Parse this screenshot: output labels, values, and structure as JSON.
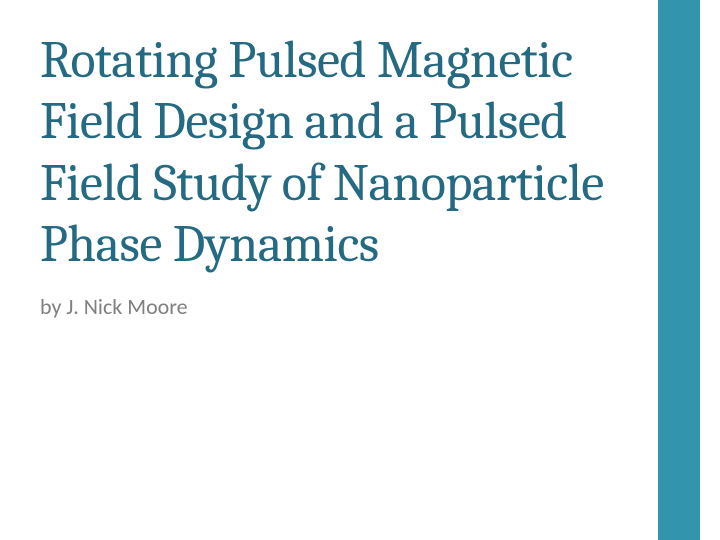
{
  "slide": {
    "title": "Rotating Pulsed Magnetic Field Design and a Pulsed Field Study of Nanoparticle Phase Dynamics",
    "author": "by J. Nick Moore",
    "title_color": "#246a82",
    "author_color": "#7f7f7f",
    "accent_color": "#3294ad",
    "background_color": "#ffffff",
    "title_fontsize": 52,
    "author_fontsize": 22,
    "accent_bar_width": 42
  }
}
